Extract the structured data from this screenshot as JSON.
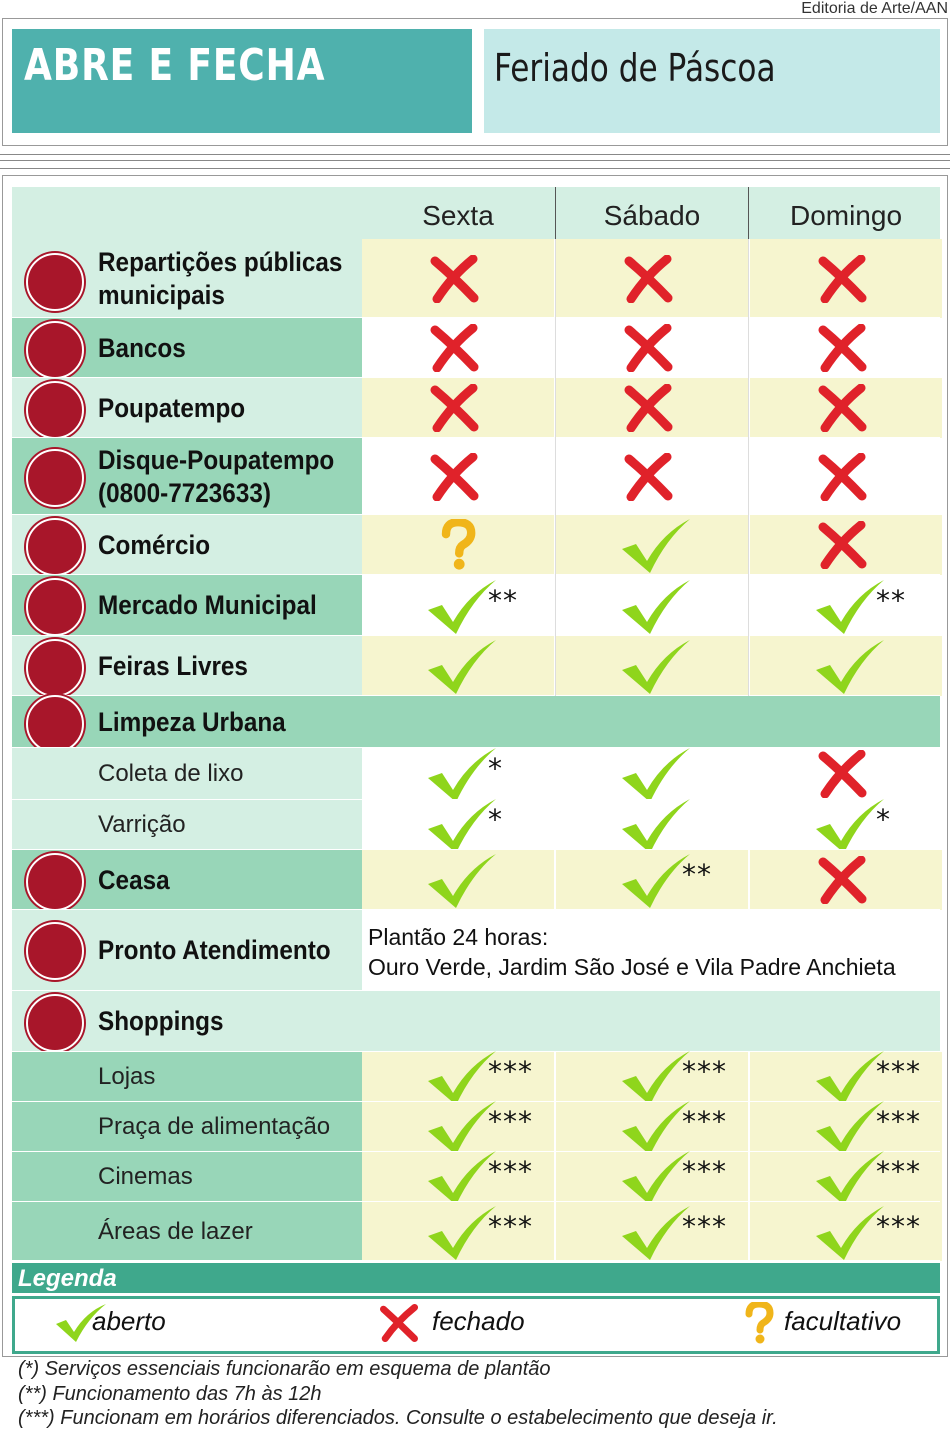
{
  "credit": "Editoria de Arte/AAN",
  "title": "ABRE E FECHA",
  "subtitle": "Feriado de Páscoa",
  "days": [
    "Sexta",
    "Sábado",
    "Domingo"
  ],
  "rows": [
    {
      "label": "Repartições públicas municipais",
      "icon": "city-hall-icon",
      "cells": [
        {
          "s": "closed"
        },
        {
          "s": "closed"
        },
        {
          "s": "closed"
        }
      ]
    },
    {
      "label": "Bancos",
      "icon": "money-bags-icon",
      "cells": [
        {
          "s": "closed"
        },
        {
          "s": "closed"
        },
        {
          "s": "closed"
        }
      ]
    },
    {
      "label": "Poupatempo",
      "icon": "clock-building-icon",
      "cells": [
        {
          "s": "closed"
        },
        {
          "s": "closed"
        },
        {
          "s": "closed"
        }
      ]
    },
    {
      "label": "Disque-Poupatempo (0800-7723633)",
      "icon": "phone-clock-icon",
      "cells": [
        {
          "s": "closed"
        },
        {
          "s": "closed"
        },
        {
          "s": "closed"
        }
      ]
    },
    {
      "label": "Comércio",
      "icon": "price-tag-icon",
      "cells": [
        {
          "s": "optional"
        },
        {
          "s": "open"
        },
        {
          "s": "closed"
        }
      ]
    },
    {
      "label": "Mercado Municipal",
      "icon": "market-building-icon",
      "cells": [
        {
          "s": "open",
          "note": "**"
        },
        {
          "s": "open"
        },
        {
          "s": "open",
          "note": "**"
        }
      ]
    },
    {
      "label": "Feiras Livres",
      "icon": "market-stall-icon",
      "cells": [
        {
          "s": "open"
        },
        {
          "s": "open"
        },
        {
          "s": "open"
        }
      ]
    },
    {
      "label": "Limpeza Urbana",
      "icon": "garbage-truck-icon",
      "section": true
    },
    {
      "label": "Coleta de lixo",
      "sub": true,
      "cells": [
        {
          "s": "open",
          "note": "*"
        },
        {
          "s": "open"
        },
        {
          "s": "closed"
        }
      ]
    },
    {
      "label": "Varrição",
      "sub": true,
      "cells": [
        {
          "s": "open",
          "note": "*"
        },
        {
          "s": "open"
        },
        {
          "s": "open",
          "note": "*"
        }
      ]
    },
    {
      "label": "Ceasa",
      "icon": "warehouse-icon",
      "cells": [
        {
          "s": "open"
        },
        {
          "s": "open",
          "note": "**"
        },
        {
          "s": "closed"
        }
      ]
    },
    {
      "label": "Pronto Atendimento",
      "icon": "hospital-icon",
      "text_lines": [
        "Plantão 24 horas:",
        "Ouro Verde, Jardim São José e Vila Padre Anchieta"
      ]
    },
    {
      "label": "Shoppings",
      "icon": "gift-box-icon",
      "section": true
    },
    {
      "label": "Lojas",
      "sub": true,
      "cells": [
        {
          "s": "open",
          "note": "***"
        },
        {
          "s": "open",
          "note": "***"
        },
        {
          "s": "open",
          "note": "***"
        }
      ]
    },
    {
      "label": "Praça de alimentação",
      "sub": true,
      "cells": [
        {
          "s": "open",
          "note": "***"
        },
        {
          "s": "open",
          "note": "***"
        },
        {
          "s": "open",
          "note": "***"
        }
      ]
    },
    {
      "label": "Cinemas",
      "sub": true,
      "cells": [
        {
          "s": "open",
          "note": "***"
        },
        {
          "s": "open",
          "note": "***"
        },
        {
          "s": "open",
          "note": "***"
        }
      ]
    },
    {
      "label": "Áreas de lazer",
      "sub": true,
      "cells": [
        {
          "s": "open",
          "note": "***"
        },
        {
          "s": "open",
          "note": "***"
        },
        {
          "s": "open",
          "note": "***"
        }
      ]
    }
  ],
  "legend": {
    "title": "Legenda",
    "open": "aberto",
    "closed": "fechado",
    "optional": "facultativo"
  },
  "notes": [
    "(*) Serviços essenciais funcionarão em esquema de plantão",
    "(**) Funcionamento das 7h às 12h",
    "(***) Funcionam em horários diferenciados. Consulte o estabelecimento que deseja ir."
  ],
  "colors": {
    "title_bg": "#4fb1ad",
    "subtitle_bg": "#c4e9e8",
    "label_mid": "#98d6b8",
    "label_light": "#d4efe3",
    "cell_yellow": "#f6f5cf",
    "check": "#8fd51c",
    "cross": "#e0222a",
    "question": "#f0b51a",
    "icon_red": "#a8162a",
    "legend_green": "#3fa88c"
  }
}
